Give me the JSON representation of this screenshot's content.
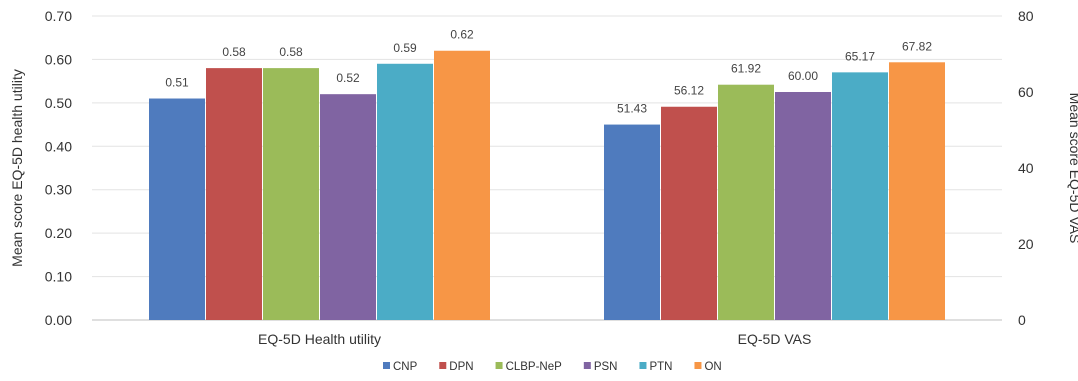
{
  "chart_data": {
    "type": "bar",
    "categories": [
      "EQ-5D Health utility",
      "EQ-5D VAS"
    ],
    "series": [
      {
        "name": "CNP",
        "color": "#4F7BBE",
        "values": [
          0.51,
          51.43
        ]
      },
      {
        "name": "DPN",
        "color": "#C0504D",
        "values": [
          0.58,
          56.12
        ]
      },
      {
        "name": "CLBP-NeP",
        "color": "#9BBB59",
        "values": [
          0.58,
          61.92
        ]
      },
      {
        "name": "PSN",
        "color": "#8064A2",
        "values": [
          0.52,
          60.0
        ]
      },
      {
        "name": "PTN",
        "color": "#4BACC6",
        "values": [
          0.59,
          65.17
        ]
      },
      {
        "name": "ON",
        "color": "#F79646",
        "values": [
          0.62,
          67.82
        ]
      }
    ],
    "data_labels": [
      [
        "0.51",
        "51.43"
      ],
      [
        "0.58",
        "56.12"
      ],
      [
        "0.58",
        "61.92"
      ],
      [
        "0.52",
        "60.00"
      ],
      [
        "0.59",
        "65.17"
      ],
      [
        "0.62",
        "67.82"
      ]
    ],
    "y_left": {
      "label": "Mean score EQ-5D health utility",
      "ylim": [
        0,
        0.7
      ],
      "ticks": [
        0,
        0.1,
        0.2,
        0.3,
        0.4,
        0.5,
        0.6,
        0.7
      ],
      "tick_labels": [
        "0.00",
        "0.10",
        "0.20",
        "0.30",
        "0.40",
        "0.50",
        "0.60",
        "0.70"
      ]
    },
    "y_right": {
      "label": "Mean score EQ-5D VAS",
      "ylim": [
        0,
        80
      ],
      "ticks": [
        0,
        20,
        40,
        60,
        80
      ],
      "tick_labels": [
        "0",
        "20",
        "40",
        "60",
        "80"
      ]
    },
    "axis_for_category": [
      "left",
      "right"
    ],
    "grid": true,
    "legend_position": "bottom"
  }
}
